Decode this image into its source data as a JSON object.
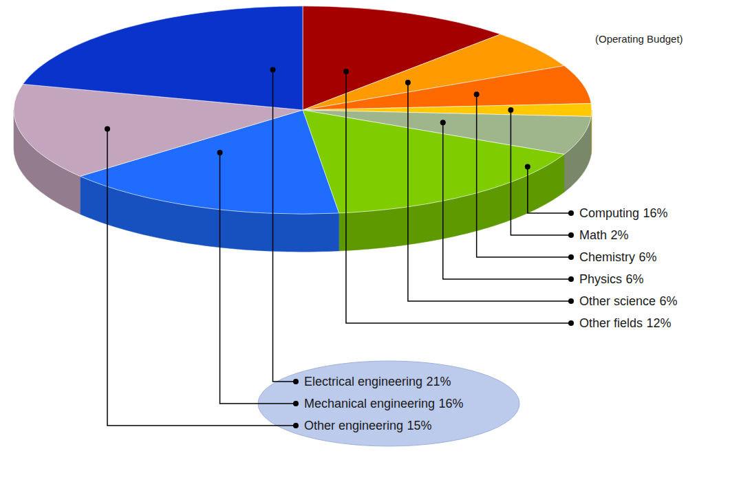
{
  "chart_data": {
    "type": "pie",
    "subtitle": "(Operating Budget)",
    "categories": [
      "Other fields",
      "Other science",
      "Chemistry",
      "Math",
      "Physics",
      "Computing",
      "Mechanical engineering",
      "Other engineering",
      "Electrical engineering"
    ],
    "values": [
      12,
      6,
      6,
      2,
      6,
      16,
      16,
      15,
      21
    ],
    "value_labels": [
      "12%",
      "6%",
      "6%",
      "2%",
      "6%",
      "16%",
      "16%",
      "15%",
      "21%"
    ],
    "colors": [
      "#a50000",
      "#ff9a00",
      "#ff6a00",
      "#ffc800",
      "#9fb58c",
      "#7fcc00",
      "#1f6cff",
      "#c3a5bd",
      "#0a33cc"
    ],
    "data_labels": true
  }
}
